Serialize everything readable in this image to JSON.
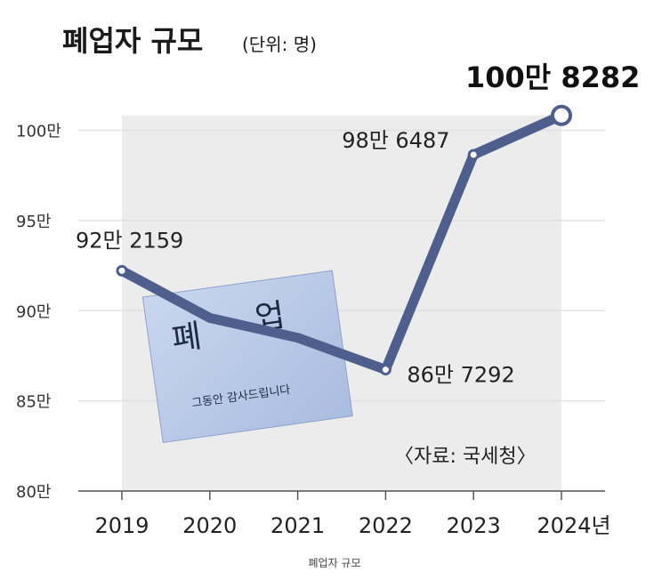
{
  "chart_data": {
    "type": "line",
    "title": "폐업자 규모",
    "unit": "(단위: 명)",
    "x": [
      "2019",
      "2020",
      "2021",
      "2022",
      "2023",
      "2024"
    ],
    "x_tick_labels": [
      "2019",
      "2020",
      "2021",
      "2022",
      "2023",
      "2024년"
    ],
    "values": [
      922159,
      896000,
      885000,
      867292,
      986487,
      1008282
    ],
    "ylim": [
      800000,
      1020000
    ],
    "y_ticks": [
      800000,
      850000,
      900000,
      950000,
      1000000
    ],
    "y_tick_labels": [
      "80만",
      "85만",
      "90만",
      "95만",
      "100만"
    ],
    "data_labels": [
      {
        "index": 0,
        "text": "92만 2159"
      },
      {
        "index": 3,
        "text": "86만 7292"
      },
      {
        "index": 4,
        "text": "98만 6487"
      },
      {
        "index": 5,
        "text": "100만 8282"
      }
    ],
    "source": "〈자료: 국세청〉",
    "grid": true,
    "line_color": "#4e5f8e",
    "area_color": "#ececec",
    "grid_color": "#e0e0e0"
  },
  "photo": {
    "big_text_1": "폐",
    "big_text_2": "업",
    "small_text": "그동안 감사드립니다"
  },
  "caption": "폐업자 규모"
}
